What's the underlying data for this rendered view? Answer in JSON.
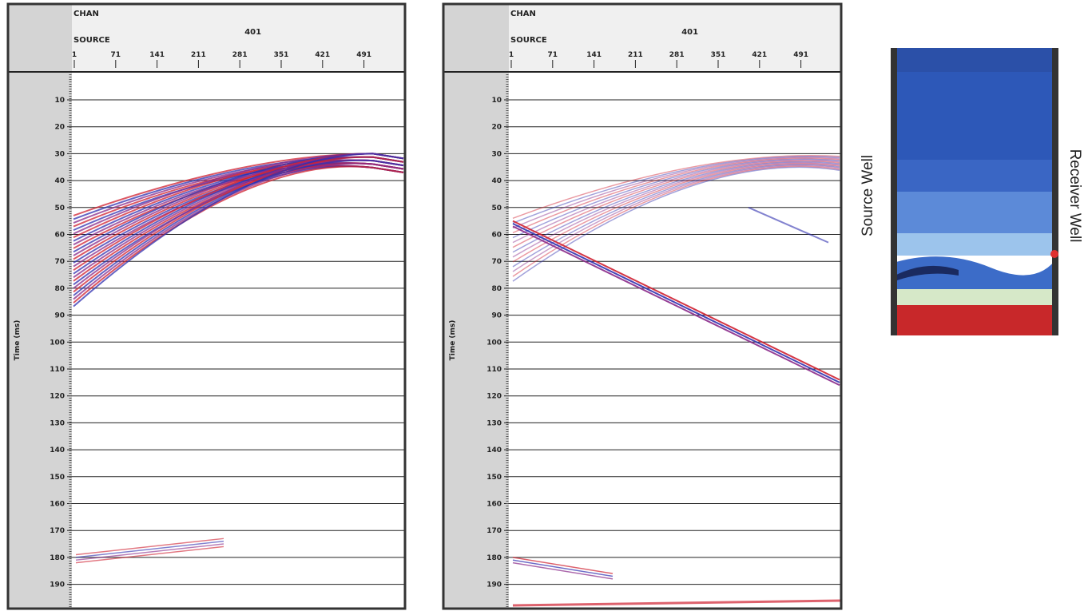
{
  "panels": [
    {
      "chan_label": "CHAN",
      "chan_value": "401",
      "source_label": "SOURCE",
      "x_ticks": [
        "1",
        "71",
        "141",
        "211",
        "281",
        "351",
        "421",
        "491"
      ],
      "y_axis_label": "Time (ms)",
      "y_ticks": [
        "10",
        "20",
        "30",
        "40",
        "50",
        "60",
        "70",
        "80",
        "90",
        "100",
        "110",
        "120",
        "130",
        "140",
        "150",
        "160",
        "170",
        "180",
        "190"
      ]
    },
    {
      "chan_label": "CHAN",
      "chan_value": "401",
      "source_label": "SOURCE",
      "x_ticks": [
        "1",
        "71",
        "141",
        "211",
        "281",
        "351",
        "421",
        "491"
      ],
      "y_axis_label": "Time (ms)",
      "y_ticks": [
        "10",
        "20",
        "30",
        "40",
        "50",
        "60",
        "70",
        "80",
        "90",
        "100",
        "110",
        "120",
        "130",
        "140",
        "150",
        "160",
        "170",
        "180",
        "190"
      ]
    }
  ],
  "model": {
    "left_label": "Source Well",
    "right_label": "Receiver Well"
  }
}
